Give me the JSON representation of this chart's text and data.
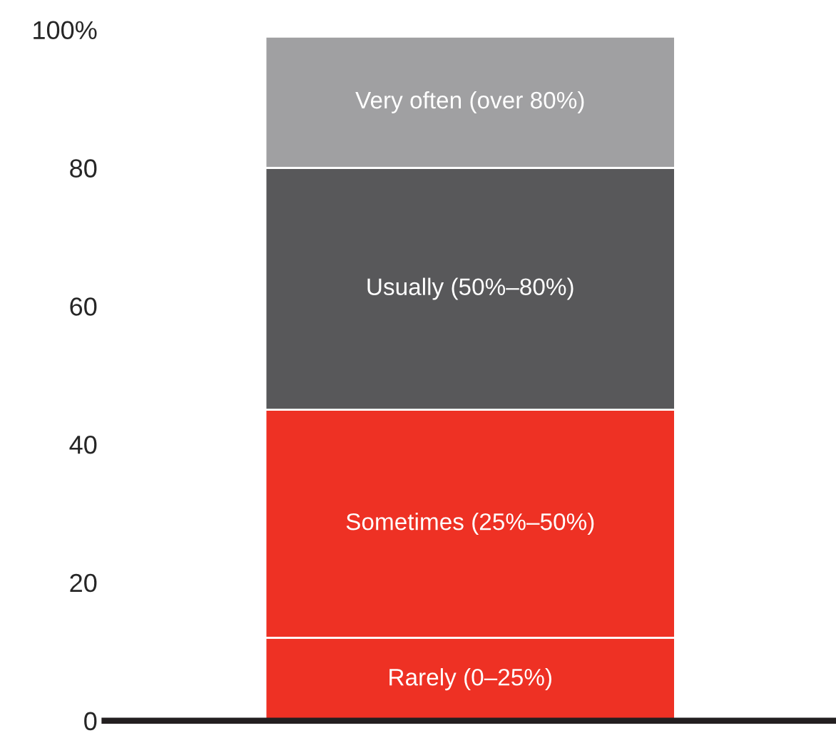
{
  "chart_data": {
    "type": "bar",
    "stacked": true,
    "categories": [
      null
    ],
    "series": [
      {
        "name": "Rarely (0–25%)",
        "color": "#ee3124",
        "values": [
          12
        ]
      },
      {
        "name": "Sometimes (25%–50%)",
        "color": "#ee3124",
        "values": [
          33
        ]
      },
      {
        "name": "Usually (50%–80%)",
        "color": "#58585a",
        "values": [
          35
        ]
      },
      {
        "name": "Very often (over 80%)",
        "color": "#a0a0a2",
        "values": [
          19
        ]
      }
    ],
    "ylim": [
      0,
      100
    ],
    "yticks": [
      0,
      20,
      40,
      60,
      80,
      {
        "value": 100,
        "label": "100%"
      }
    ],
    "grid": false,
    "legend": false
  }
}
